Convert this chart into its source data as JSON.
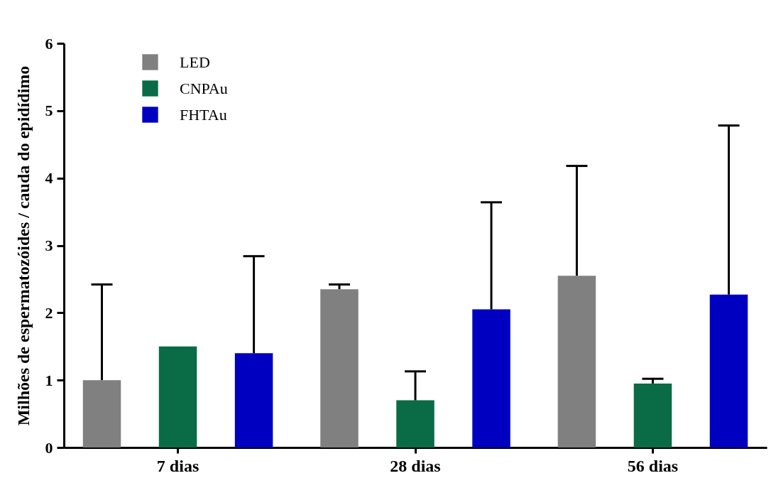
{
  "chart_data": {
    "type": "bar",
    "ylabel": "Milhões de espermatozóides / cauda do epidídimo",
    "categories": [
      "7 dias",
      "28 dias",
      "56 dias"
    ],
    "series": [
      {
        "name": "LED",
        "color": "#808080",
        "values": [
          1.0,
          2.35,
          2.55
        ],
        "errors": [
          [
            1.0,
            2.42
          ],
          [
            2.35,
            2.42
          ],
          [
            2.55,
            4.18
          ]
        ]
      },
      {
        "name": "CNPAu",
        "color": "#0a6b47",
        "values": [
          1.5,
          0.7,
          0.95
        ],
        "errors": [
          null,
          [
            0.7,
            1.13
          ],
          [
            0.95,
            1.02
          ]
        ]
      },
      {
        "name": "FHTAu",
        "color": "#0000c0",
        "values": [
          1.4,
          2.05,
          2.27
        ],
        "errors": [
          [
            1.4,
            2.84
          ],
          [
            2.05,
            3.64
          ],
          [
            2.27,
            4.78
          ]
        ]
      }
    ],
    "ylim": [
      0,
      6
    ],
    "yticks": [
      0,
      1,
      2,
      3,
      4,
      5,
      6
    ],
    "grid": false,
    "legend": "top left"
  }
}
